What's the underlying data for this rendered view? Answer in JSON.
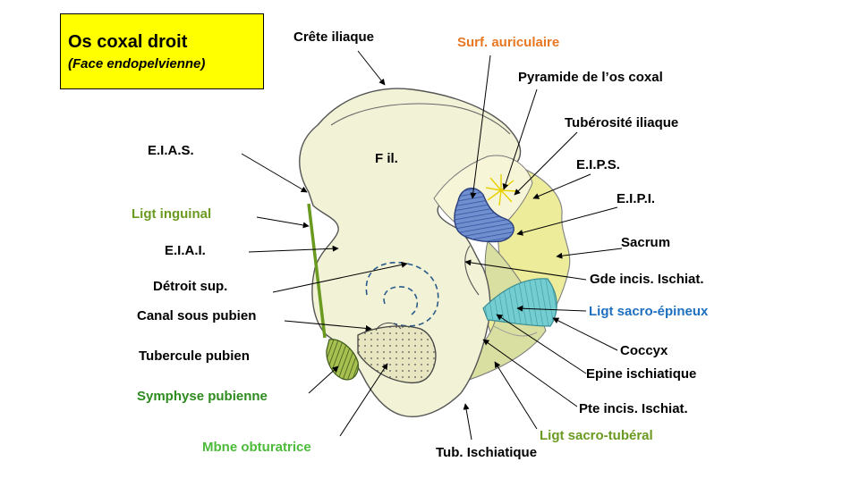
{
  "title": {
    "main": "Os coxal droit",
    "sub": "(Face endopelvienne)"
  },
  "labels": {
    "crete_iliaque": "Crête iliaque",
    "surf_auriculaire": "Surf. auriculaire",
    "pyramide": "Pyramide de l’os coxal",
    "tuberosite": "Tubérosité iliaque",
    "eips": "E.I.P.S.",
    "eipi": "E.I.P.I.",
    "sacrum": "Sacrum",
    "gde_incis": "Gde incis. Ischiat.",
    "ligt_sacro_epineux": "Ligt sacro-épineux",
    "coccyx": "Coccyx",
    "epine_ischiatique": "Epine ischiatique",
    "pte_incis": "Pte incis. Ischiat.",
    "ligt_sacro_tuberal": "Ligt sacro-tubéral",
    "tub_ischiatique": "Tub. Ischiatique",
    "mbne_obturatrice": "Mbne obturatrice",
    "symphyse": "Symphyse pubienne",
    "tubercule_pubien": "Tubercule pubien",
    "canal_sous_pubien": "Canal sous pubien",
    "detroit_sup": "Détroit sup.",
    "eiai": "E.I.A.I.",
    "ligt_inguinal": "Ligt inguinal",
    "eias": "E.I.A.S.",
    "fosse_iliaque": "F il."
  },
  "colors": {
    "title_bg": "#ffff00",
    "orange_label": "#e87722",
    "green_label": "#6a9a1f",
    "dark_green_label": "#2e8b1f",
    "light_green_label": "#4cbb3a",
    "blue_label": "#1f6fc0",
    "bone": "#f1f2d6",
    "sacrum": "#ecec9a",
    "auricular": "#6f8fcf",
    "sacrospinous": "#74cdd0",
    "ligament_yellowgreen": "#d8dfa0"
  }
}
